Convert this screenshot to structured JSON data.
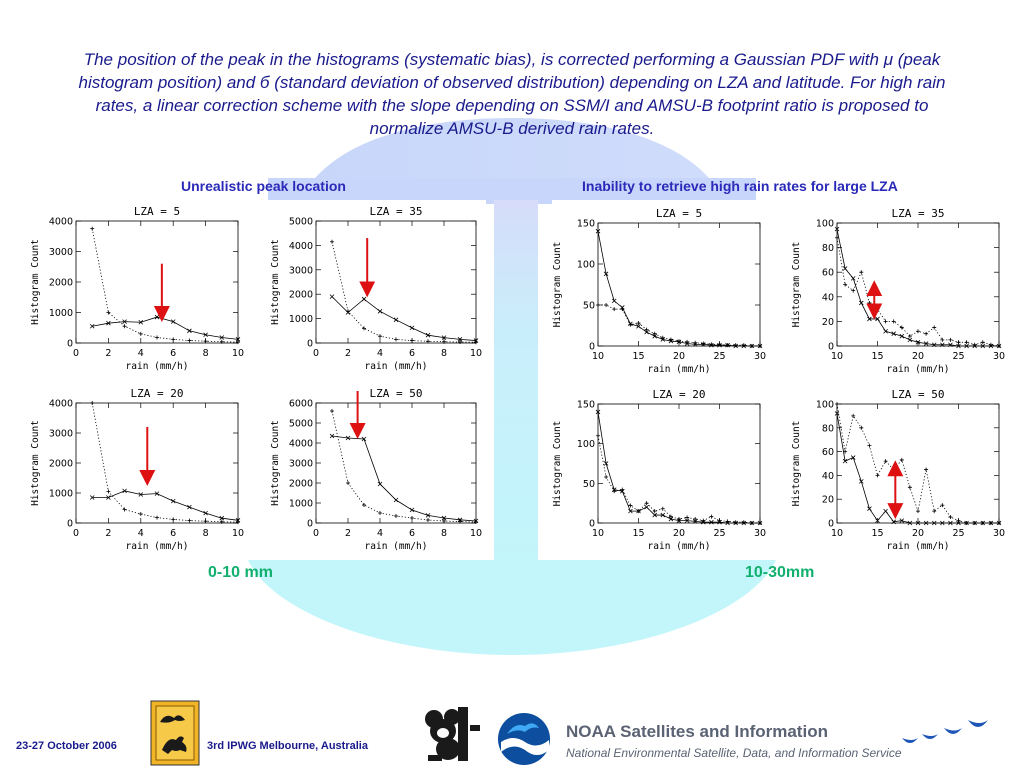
{
  "slide": {
    "intro_text": "The position of the peak in the histograms (systematic bias), is corrected performing a Gaussian PDF with μ (peak histogram position) and б (standard deviation of observed distribution) depending on LZA and latitude. For high rain rates, a linear correction scheme with the slope depending on SSM/I and AMSU-B footprint ratio is proposed to normalize AMSU-B derived rain rates.",
    "left_section_title": "Unrealistic peak location",
    "right_section_title": "Inability to retrieve high rain rates for large LZA",
    "left_range_label": "0-10 mm",
    "right_range_label": "10-30mm",
    "colors": {
      "text_blue": "#1a1a8c",
      "heading_blue": "#2a2ab8",
      "range_green": "#12b06e",
      "arrow_red": "#dd1111",
      "background_cyan": "#bff4fb"
    }
  },
  "footer": {
    "date": "23-27 October 2006",
    "conference": "3rd IPWG  Melbourne, Australia",
    "noaa_title": "NOAA Satellites and Information",
    "noaa_subtitle": "National Environmental Satellite, Data, and Information Service",
    "icons": [
      "ipwg-kangaroo-logo",
      "koala-logo",
      "noaa-logo",
      "wave-birds-logo"
    ]
  },
  "chart_data": [
    {
      "type": "line",
      "title": "LZA =  5",
      "xlabel": "rain (mm/h)",
      "ylabel": "Histogram Count",
      "xlim": [
        0,
        10
      ],
      "ylim": [
        0,
        4000
      ],
      "xticks": [
        "0",
        "2",
        "4",
        "6",
        "8",
        "10"
      ],
      "yticks": [
        "0",
        "1000",
        "2000",
        "3000",
        "4000"
      ],
      "x": [
        1,
        2,
        3,
        4,
        5,
        6,
        7,
        8,
        9,
        10
      ],
      "series": [
        {
          "style": "solid",
          "values": [
            550,
            650,
            700,
            680,
            850,
            700,
            400,
            270,
            180,
            120
          ]
        },
        {
          "style": "dotted",
          "values": [
            3750,
            1000,
            550,
            300,
            180,
            120,
            80,
            60,
            40,
            30
          ]
        }
      ],
      "arrow": {
        "x": 5.3,
        "y_from": 2600,
        "y_to": 950
      }
    },
    {
      "type": "line",
      "title": "LZA = 35",
      "xlabel": "rain (mm/h)",
      "ylabel": "Histogram Count",
      "xlim": [
        0,
        10
      ],
      "ylim": [
        0,
        5000
      ],
      "xticks": [
        "0",
        "2",
        "4",
        "6",
        "8",
        "10"
      ],
      "yticks": [
        "0",
        "1000",
        "2000",
        "3000",
        "4000",
        "5000"
      ],
      "x": [
        1,
        2,
        3,
        4,
        5,
        6,
        7,
        8,
        9,
        10
      ],
      "series": [
        {
          "style": "solid",
          "values": [
            1900,
            1250,
            1800,
            1300,
            950,
            620,
            320,
            220,
            150,
            100
          ]
        },
        {
          "style": "dotted",
          "values": [
            4150,
            1300,
            600,
            280,
            150,
            100,
            70,
            50,
            40,
            30
          ]
        }
      ],
      "arrow": {
        "x": 3.2,
        "y_from": 4300,
        "y_to": 2200
      }
    },
    {
      "type": "line",
      "title": "LZA = 20",
      "xlabel": "rain (mm/h)",
      "ylabel": "Histogram Count",
      "xlim": [
        0,
        10
      ],
      "ylim": [
        0,
        4000
      ],
      "xticks": [
        "0",
        "2",
        "4",
        "6",
        "8",
        "10"
      ],
      "yticks": [
        "0",
        "1000",
        "2000",
        "3000",
        "4000"
      ],
      "x": [
        1,
        2,
        3,
        4,
        5,
        6,
        7,
        8,
        9,
        10
      ],
      "series": [
        {
          "style": "solid",
          "values": [
            850,
            850,
            1070,
            950,
            980,
            730,
            530,
            330,
            160,
            90
          ]
        },
        {
          "style": "dotted",
          "values": [
            4000,
            1050,
            450,
            300,
            180,
            120,
            80,
            60,
            40,
            30
          ]
        }
      ],
      "arrow": {
        "x": 4.4,
        "y_from": 3200,
        "y_to": 1500
      }
    },
    {
      "type": "line",
      "title": "LZA = 50",
      "xlabel": "rain (mm/h)",
      "ylabel": "Histogram Count",
      "xlim": [
        0,
        10
      ],
      "ylim": [
        0,
        6000
      ],
      "xticks": [
        "0",
        "2",
        "4",
        "6",
        "8",
        "10"
      ],
      "yticks": [
        "0",
        "1000",
        "2000",
        "3000",
        "4000",
        "5000",
        "6000"
      ],
      "x": [
        1,
        2,
        3,
        4,
        5,
        6,
        7,
        8,
        9,
        10
      ],
      "series": [
        {
          "style": "solid",
          "values": [
            4350,
            4250,
            4200,
            1950,
            1150,
            650,
            380,
            250,
            160,
            100
          ]
        },
        {
          "style": "dotted",
          "values": [
            5600,
            2000,
            900,
            500,
            350,
            250,
            150,
            100,
            70,
            50
          ]
        }
      ],
      "arrow": {
        "x": 2.6,
        "y_from": 6600,
        "y_to": 4600
      }
    },
    {
      "type": "line",
      "title": "LZA =  5",
      "xlabel": "rain (mm/h)",
      "ylabel": "Histogram Count",
      "xlim": [
        10,
        30
      ],
      "ylim": [
        0,
        150
      ],
      "xticks": [
        "10",
        "15",
        "20",
        "25",
        "30"
      ],
      "yticks": [
        "0",
        "50",
        "100",
        "150"
      ],
      "x": [
        10,
        11,
        12,
        13,
        14,
        15,
        16,
        17,
        18,
        19,
        20,
        21,
        22,
        23,
        24,
        25,
        26,
        27,
        28,
        29,
        30
      ],
      "series": [
        {
          "style": "solid",
          "values": [
            140,
            88,
            55,
            47,
            27,
            24,
            17,
            12,
            8,
            6,
            5,
            3,
            2,
            2,
            1,
            1,
            1,
            0,
            0,
            0,
            0
          ]
        },
        {
          "style": "dotted",
          "values": [
            50,
            50,
            45,
            45,
            26,
            28,
            20,
            15,
            10,
            8,
            6,
            5,
            4,
            3,
            2,
            2,
            1,
            1,
            1,
            0,
            0
          ]
        }
      ]
    },
    {
      "type": "line",
      "title": "LZA = 35",
      "xlabel": "rain (mm/h)",
      "ylabel": "Histogram Count",
      "xlim": [
        10,
        30
      ],
      "ylim": [
        0,
        100
      ],
      "xticks": [
        "10",
        "15",
        "20",
        "25",
        "30"
      ],
      "yticks": [
        "0",
        "20",
        "40",
        "60",
        "80",
        "100"
      ],
      "x": [
        10,
        11,
        12,
        13,
        14,
        15,
        16,
        17,
        18,
        19,
        20,
        21,
        22,
        23,
        24,
        25,
        26,
        27,
        28,
        29,
        30
      ],
      "series": [
        {
          "style": "solid",
          "values": [
            95,
            63,
            55,
            35,
            22,
            22,
            12,
            10,
            8,
            5,
            3,
            2,
            1,
            1,
            1,
            0,
            0,
            0,
            0,
            0,
            0
          ]
        },
        {
          "style": "dotted",
          "values": [
            88,
            50,
            45,
            60,
            35,
            30,
            20,
            20,
            15,
            8,
            12,
            10,
            15,
            5,
            5,
            3,
            3,
            1,
            3,
            1,
            0
          ]
        }
      ],
      "arrow": {
        "x": 14.6,
        "y_from": 47,
        "y_to": 28,
        "double": true
      }
    },
    {
      "type": "line",
      "title": "LZA = 20",
      "xlabel": "rain (mm/h)",
      "ylabel": "Histogram Count",
      "xlim": [
        10,
        30
      ],
      "ylim": [
        0,
        150
      ],
      "xticks": [
        "10",
        "15",
        "20",
        "25",
        "30"
      ],
      "yticks": [
        "0",
        "50",
        "100",
        "150"
      ],
      "x": [
        10,
        11,
        12,
        13,
        14,
        15,
        16,
        17,
        18,
        19,
        20,
        21,
        22,
        23,
        24,
        25,
        26,
        27,
        28,
        29,
        30
      ],
      "series": [
        {
          "style": "solid",
          "values": [
            140,
            75,
            42,
            40,
            15,
            15,
            20,
            10,
            10,
            5,
            3,
            3,
            2,
            1,
            1,
            1,
            0,
            0,
            0,
            0,
            0
          ]
        },
        {
          "style": "dotted",
          "values": [
            110,
            58,
            40,
            42,
            22,
            15,
            25,
            15,
            18,
            8,
            5,
            7,
            5,
            3,
            8,
            3,
            2,
            1,
            1,
            0,
            0
          ]
        }
      ]
    },
    {
      "type": "line",
      "title": "LZA = 50",
      "xlabel": "rain (mm/h)",
      "ylabel": "Histogram Count",
      "xlim": [
        10,
        30
      ],
      "ylim": [
        0,
        100
      ],
      "xticks": [
        "10",
        "15",
        "20",
        "25",
        "30"
      ],
      "yticks": [
        "0",
        "20",
        "40",
        "60",
        "80",
        "100"
      ],
      "x": [
        10,
        11,
        12,
        13,
        14,
        15,
        16,
        17,
        18,
        19,
        20,
        21,
        22,
        23,
        24,
        25,
        26,
        27,
        28,
        29,
        30
      ],
      "series": [
        {
          "style": "solid",
          "values": [
            92,
            52,
            55,
            35,
            12,
            2,
            10,
            1,
            2,
            0,
            0,
            0,
            0,
            0,
            0,
            0,
            0,
            0,
            0,
            0,
            0
          ]
        },
        {
          "style": "dotted",
          "values": [
            100,
            60,
            90,
            80,
            65,
            40,
            52,
            45,
            53,
            30,
            10,
            45,
            10,
            15,
            5,
            2,
            0,
            0,
            0,
            0,
            0
          ]
        }
      ],
      "arrow": {
        "x": 17.2,
        "y_from": 46,
        "y_to": 10,
        "double": true
      }
    }
  ]
}
